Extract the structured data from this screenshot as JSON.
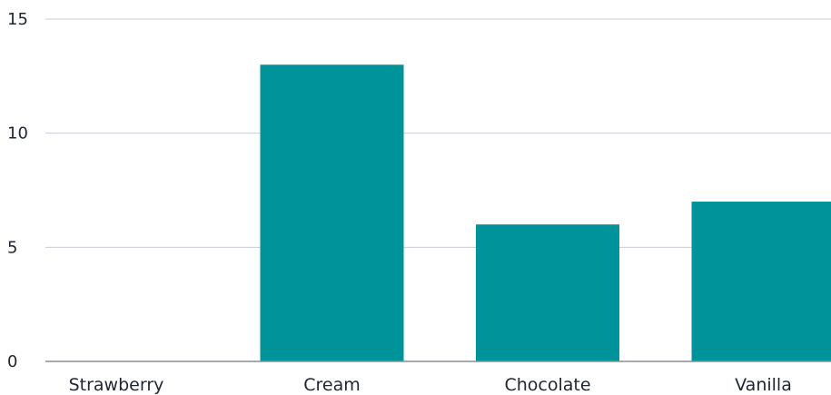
{
  "chart_data": {
    "type": "bar",
    "categories": [
      "Strawberry",
      "Cream",
      "Chocolate",
      "Vanilla"
    ],
    "values": [
      0,
      13,
      6,
      7
    ],
    "title": "",
    "xlabel": "",
    "ylabel": "",
    "ylim": [
      0,
      15
    ],
    "yticks": [
      0,
      5,
      10,
      15
    ],
    "grid": true,
    "legend": "none",
    "colors": {
      "bar": "#00939a",
      "grid": "#c8ccd2",
      "baseline": "#8a8f96",
      "text": "#1f2630"
    }
  }
}
